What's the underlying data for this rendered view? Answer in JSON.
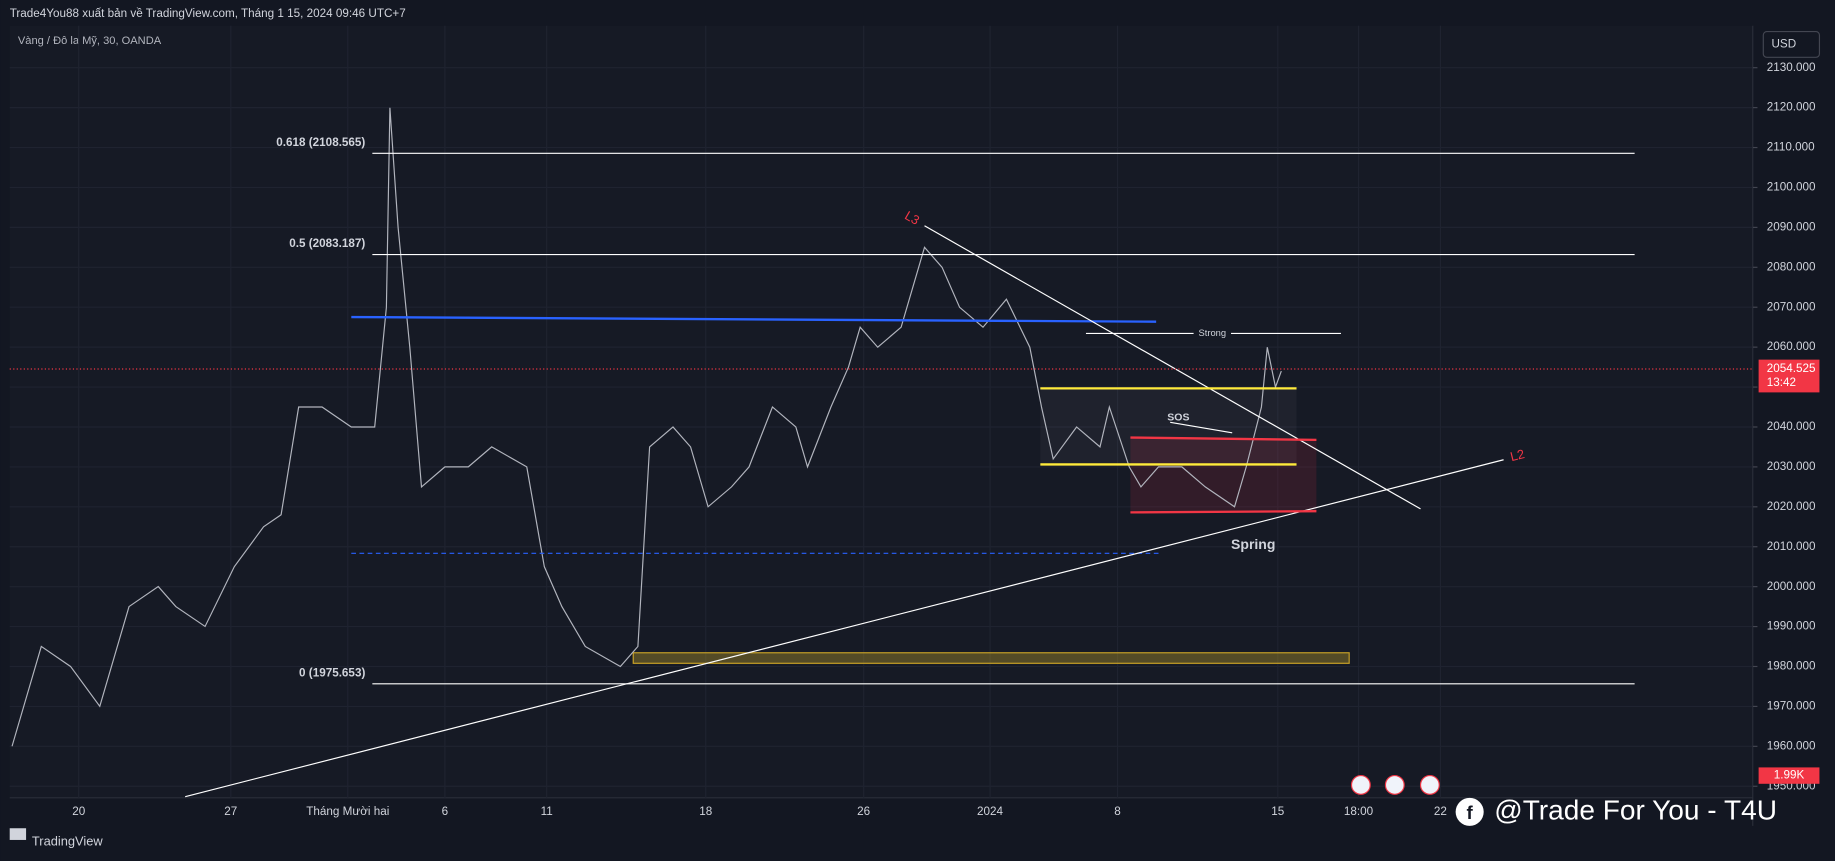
{
  "header": {
    "publisher": "Trade4You88 xuất bản về TradingView.com, Tháng 1 15, 2024 09:46 UTC+7",
    "symbol": "Vàng / Đô la Mỹ, 30, OANDA",
    "currency": "USD"
  },
  "price_axis": {
    "ylim": [
      1947.1,
      2141.1
    ],
    "yticks": [
      {
        "value": 2130,
        "label": "2130.000"
      },
      {
        "value": 2120,
        "label": "2120.000"
      },
      {
        "value": 2110,
        "label": "2110.000"
      },
      {
        "value": 2100,
        "label": "2100.000"
      },
      {
        "value": 2090,
        "label": "2090.000"
      },
      {
        "value": 2080,
        "label": "2080.000"
      },
      {
        "value": 2070,
        "label": "2070.000"
      },
      {
        "value": 2060,
        "label": "2060.000"
      },
      {
        "value": 2050,
        "label": "2050.000"
      },
      {
        "value": 2040,
        "label": "2040.000"
      },
      {
        "value": 2030,
        "label": "2030.000"
      },
      {
        "value": 2020,
        "label": "2020.000"
      },
      {
        "value": 2010,
        "label": "2010.000"
      },
      {
        "value": 2000,
        "label": "2000.000"
      },
      {
        "value": 1990,
        "label": "1990.000"
      },
      {
        "value": 1980,
        "label": "1980.000"
      },
      {
        "value": 1970,
        "label": "1970.000"
      },
      {
        "value": 1960,
        "label": "1960.000"
      },
      {
        "value": 1950,
        "label": "1950.000"
      }
    ],
    "current_price": {
      "value": 2054.525,
      "label": "2054.525"
    },
    "countdown": "13:42",
    "volume": "1.99K"
  },
  "time_axis": [
    "20",
    "27",
    "Tháng Mười hai",
    "6",
    "11",
    "18",
    "26",
    "2024",
    "8",
    "15",
    "18:00",
    "22"
  ],
  "fib_levels": [
    {
      "label": "0.618 (2108.565)",
      "value": 2108.565
    },
    {
      "label": "0.5 (2083.187)",
      "value": 2083.187
    },
    {
      "label": "0 (1975.653)",
      "value": 1975.653
    }
  ],
  "annotations": {
    "l3": "L3",
    "l2": "L2",
    "strong": "Strong",
    "sos": "SOS",
    "spring": "Spring"
  },
  "footer": {
    "brand": "TradingView",
    "watermark": "@Trade For You - T4U"
  }
}
